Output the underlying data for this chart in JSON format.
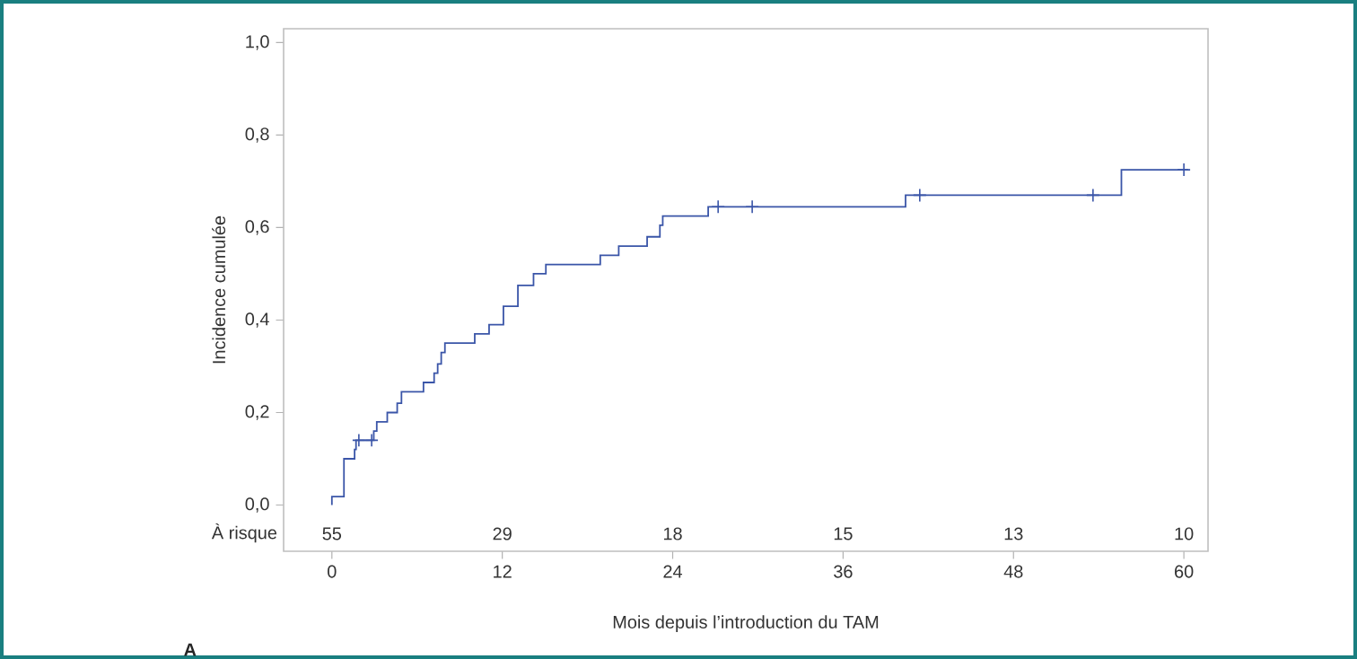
{
  "chart_data": {
    "type": "step",
    "xlabel": "Mois depuis l’introduction du TAM",
    "ylabel": "Incidence cumulée",
    "xlim": [
      -3.4,
      61.7
    ],
    "ylim": [
      -0.1,
      1.03
    ],
    "xticks": [
      0,
      12,
      24,
      36,
      48,
      60
    ],
    "yticks": [
      {
        "value": 0,
        "label": "0,0"
      },
      {
        "value": 0.2,
        "label": "0,2"
      },
      {
        "value": 0.4,
        "label": "0,4"
      },
      {
        "value": 0.6,
        "label": "0,6"
      },
      {
        "value": 0.8,
        "label": "0,8"
      },
      {
        "value": 1.0,
        "label": "1,0"
      }
    ],
    "grid": false,
    "series": [
      {
        "color": "#3a55a8",
        "marker": "none",
        "x": [
          0,
          0,
          0.85,
          1.6,
          1.7,
          2.95,
          3.16,
          3.9,
          4.6,
          4.9,
          6.45,
          7.2,
          7.45,
          7.7,
          7.96,
          10.06,
          11.07,
          12.08,
          13.1,
          14.2,
          15.07,
          18.9,
          20.2,
          22.2,
          23.1,
          23.3,
          26.5,
          40.4,
          55.6,
          60.3
        ],
        "values": [
          0,
          0.018,
          0.1,
          0.12,
          0.14,
          0.16,
          0.18,
          0.2,
          0.22,
          0.245,
          0.265,
          0.285,
          0.305,
          0.33,
          0.35,
          0.37,
          0.39,
          0.43,
          0.475,
          0.5,
          0.52,
          0.54,
          0.56,
          0.58,
          0.605,
          0.625,
          0.645,
          0.67,
          0.725,
          0.725
        ]
      },
      {
        "type": "scatter",
        "color": "#3a55a8",
        "marker": "cross",
        "x": [
          1.9,
          2.8,
          27.2,
          29.6,
          41.4,
          53.6,
          60
        ],
        "values": [
          0.14,
          0.14,
          0.645,
          0.645,
          0.67,
          0.67,
          0.725
        ]
      }
    ],
    "annotations": [
      "À risque",
      "55",
      "29",
      "18",
      "15",
      "13",
      "10",
      "A"
    ]
  }
}
